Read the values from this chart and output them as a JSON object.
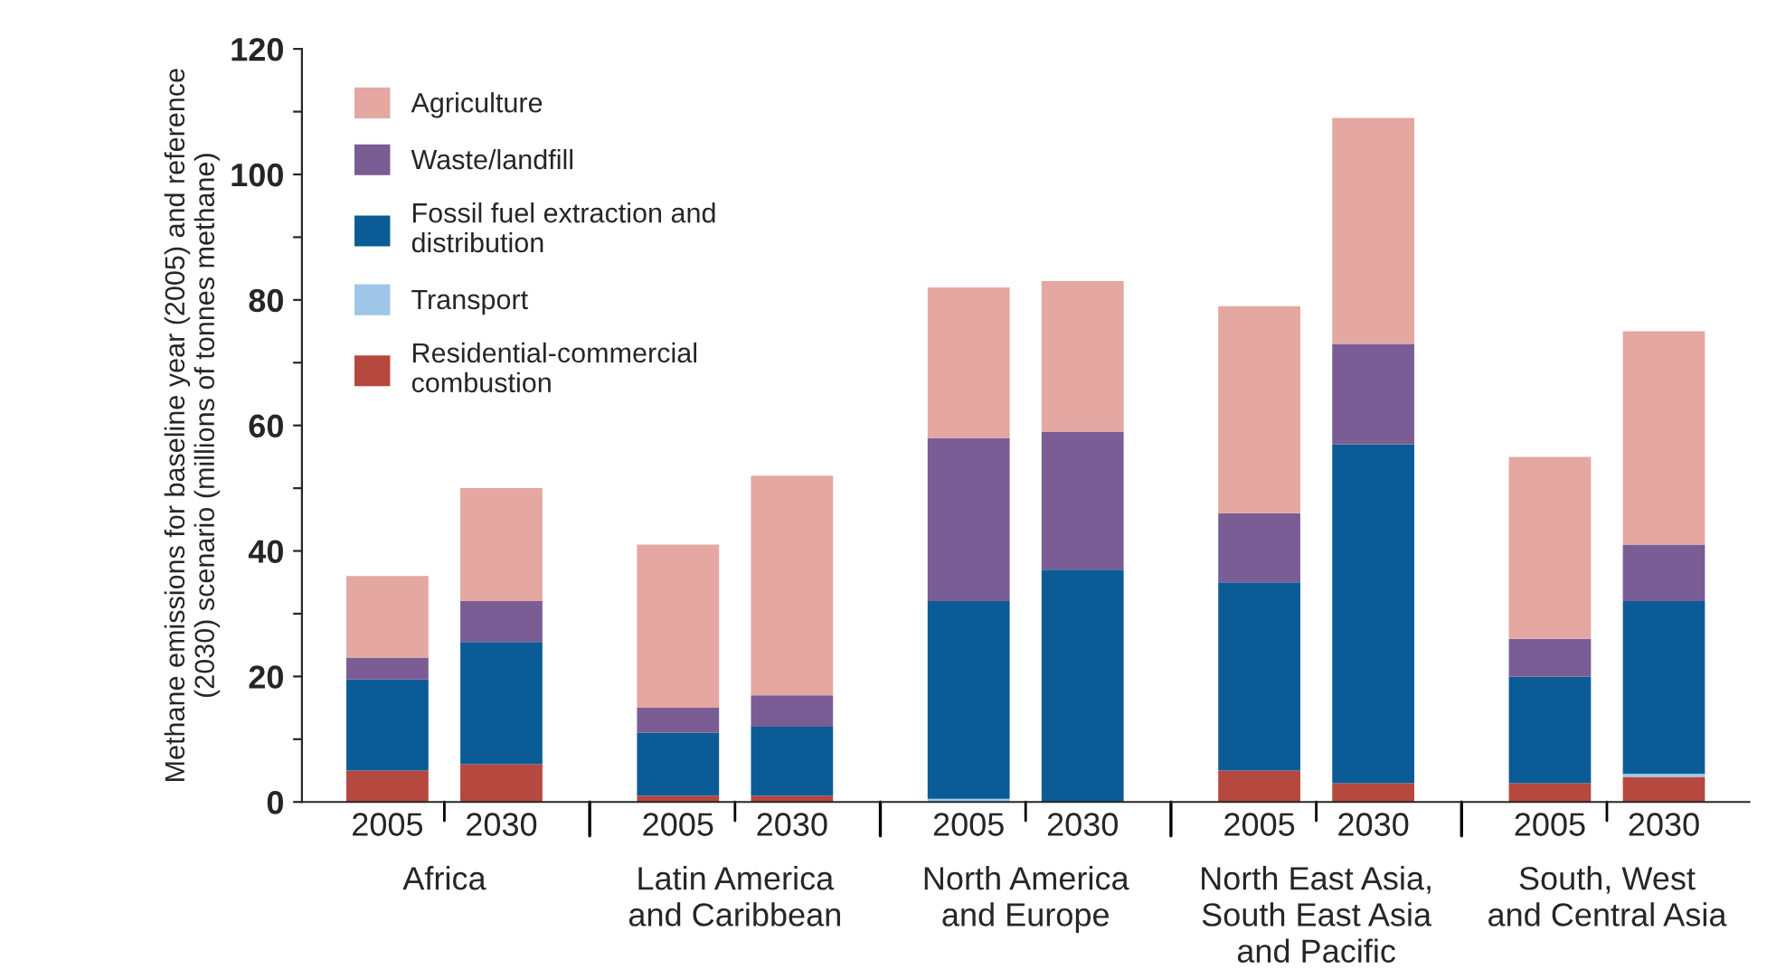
{
  "chart_data": {
    "type": "bar",
    "stacked": true,
    "ylabel": "Methane emissions for baseline year (2005) and reference\n(2030) scenario (millions of tonnes methane)",
    "categories": [
      "2005",
      "2030",
      "2005",
      "2030",
      "2005",
      "2030",
      "2005",
      "2030",
      "2005",
      "2030"
    ],
    "series": [
      {
        "name": "Residential-commercial\ncombustion",
        "color": "#b5483f",
        "values": [
          5,
          6,
          1,
          1,
          0,
          0,
          5,
          3,
          3,
          4
        ]
      },
      {
        "name": "Transport",
        "color": "#9fc6e8",
        "values": [
          0,
          0,
          0,
          0,
          0.5,
          0,
          0,
          0,
          0,
          0.5
        ]
      },
      {
        "name": "Fossil fuel extraction and\ndistribution",
        "color": "#0b5c96",
        "values": [
          14.5,
          19.5,
          10,
          11,
          31.5,
          37,
          30,
          54,
          17,
          27.5
        ]
      },
      {
        "name": "Waste/landfill",
        "color": "#7a5d94",
        "values": [
          3.5,
          6.5,
          4,
          5,
          26,
          22,
          11,
          16,
          6,
          9
        ]
      },
      {
        "name": "Agriculture",
        "color": "#e4a7a2",
        "values": [
          13,
          18,
          26,
          35,
          24,
          24,
          33,
          36,
          29,
          34
        ]
      }
    ],
    "annotations": [
      "Africa",
      "Latin America\nand Caribbean",
      "North America\nand Europe",
      "North East Asia,\nSouth East Asia\nand Pacific",
      "South, West\nand Central Asia"
    ],
    "ylim": [
      0,
      120
    ],
    "yticks": [
      0,
      {
        "value": 10,
        "label": null
      },
      20,
      {
        "value": 30,
        "label": null
      },
      40,
      {
        "value": 50,
        "label": null
      },
      60,
      {
        "value": 70,
        "label": null
      },
      80,
      {
        "value": 90,
        "label": null
      },
      100,
      {
        "value": 110,
        "label": null
      },
      120
    ],
    "legend": "top left",
    "grid": false
  }
}
